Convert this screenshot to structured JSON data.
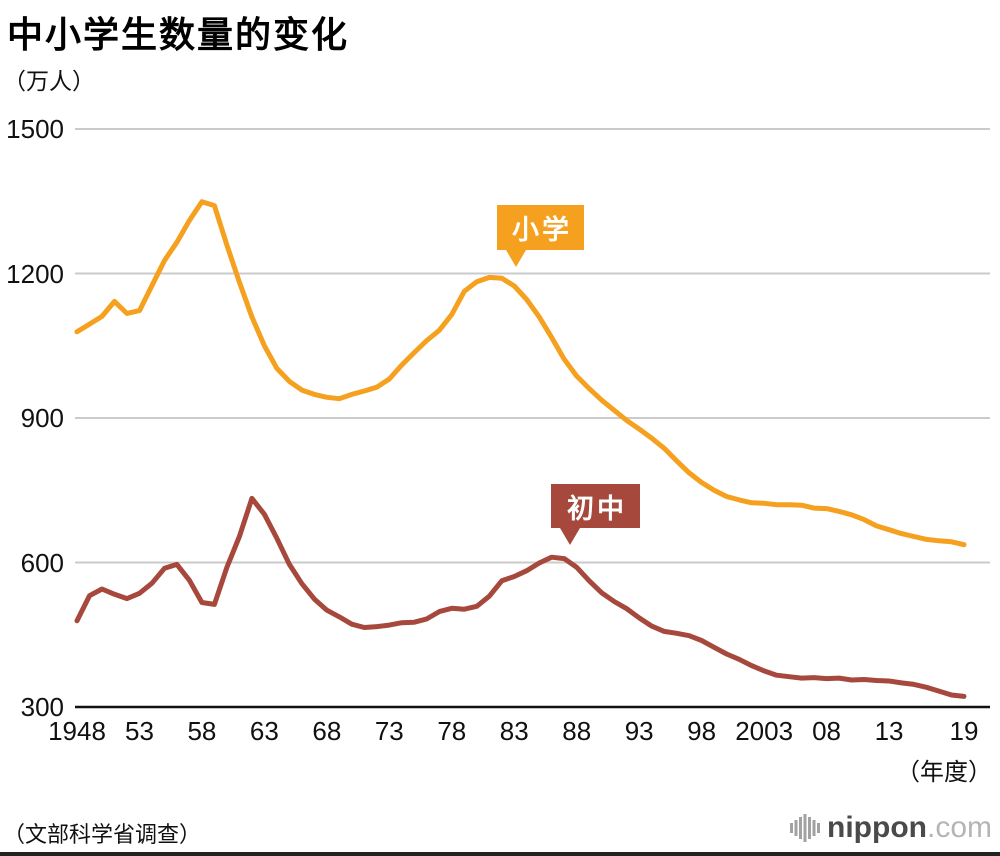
{
  "header": {
    "title": "中小学生数量的变化"
  },
  "axes": {
    "y_unit": "（万人）",
    "x_unit": "（年度）"
  },
  "callouts": {
    "elementary": "小学",
    "junior_high": "初中"
  },
  "footer": {
    "source": "（文部科学省调查）",
    "logo_name": "nippon",
    "logo_suffix": ".com"
  },
  "colors": {
    "elementary": "#F5A01E",
    "junior_high": "#A6493C",
    "grid": "#CBCBCB",
    "axis": "#111111",
    "text": "#111111"
  },
  "chart_data": {
    "type": "line",
    "title": "中小学生数量的变化",
    "ylabel": "（万人）",
    "xlabel": "（年度）",
    "ylim": [
      300,
      1500
    ],
    "y_ticks": [
      300,
      600,
      900,
      1200,
      1500
    ],
    "x_start": 1948,
    "x_end": 2019,
    "x_tick_years": [
      1948,
      1953,
      1958,
      1963,
      1968,
      1973,
      1978,
      1983,
      1988,
      1993,
      1998,
      2003,
      2008,
      2013,
      2019
    ],
    "x_tick_labels": [
      "1948",
      "53",
      "58",
      "63",
      "68",
      "73",
      "78",
      "83",
      "88",
      "93",
      "98",
      "2003",
      "08",
      "13",
      "19"
    ],
    "grid": true,
    "legend_position": "inline-callouts",
    "series": [
      {
        "name": "小学",
        "key": "elementary",
        "values": [
          1079,
          1095,
          1111,
          1142,
          1117,
          1123,
          1175,
          1227,
          1265,
          1310,
          1349,
          1341,
          1259,
          1182,
          1110,
          1050,
          1003,
          976,
          958,
          949,
          943,
          940,
          949,
          956,
          964,
          981,
          1010,
          1036,
          1061,
          1082,
          1115,
          1163,
          1183,
          1192,
          1190,
          1174,
          1146,
          1110,
          1067,
          1022,
          987,
          961,
          937,
          916,
          895,
          877,
          858,
          837,
          811,
          786,
          766,
          750,
          737,
          730,
          724,
          723,
          720,
          720,
          719,
          713,
          712,
          706,
          699,
          689,
          676,
          668,
          660,
          654,
          648,
          645,
          643,
          637
        ]
      },
      {
        "name": "初中",
        "key": "junior_high",
        "values": [
          479,
          531,
          545,
          534,
          525,
          536,
          557,
          588,
          596,
          563,
          517,
          513,
          590,
          654,
          733,
          700,
          650,
          596,
          556,
          524,
          501,
          487,
          472,
          465,
          467,
          470,
          475,
          476,
          483,
          498,
          505,
          503,
          509,
          530,
          562,
          571,
          583,
          599,
          611,
          608,
          590,
          562,
          537,
          519,
          504,
          485,
          468,
          457,
          453,
          448,
          438,
          424,
          410,
          399,
          386,
          375,
          366,
          363,
          360,
          361,
          359,
          360,
          356,
          357,
          355,
          354,
          350,
          347,
          341,
          333,
          325,
          322
        ]
      }
    ]
  }
}
